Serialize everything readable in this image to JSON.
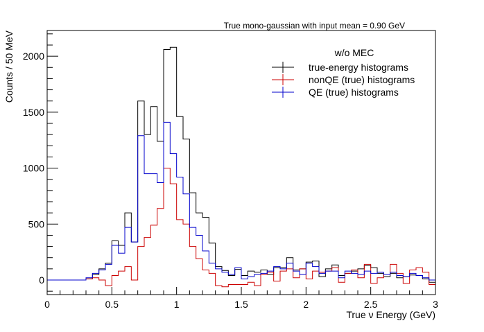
{
  "chart_data": {
    "type": "histogram",
    "title": "True mono-gaussian with input mean = 0.90 GeV",
    "xlabel": "True ν Energy (GeV)",
    "ylabel": "Counts / 50 MeV",
    "xlim": [
      0,
      3
    ],
    "ylim": [
      -130,
      2230
    ],
    "bin_width": 0.05,
    "x_ticks": [
      0,
      0.5,
      1,
      1.5,
      2,
      2.5,
      3
    ],
    "x_tick_labels": [
      "0",
      "0.5",
      "1",
      "1.5",
      "2",
      "2.5",
      "3"
    ],
    "y_ticks": [
      0,
      500,
      1000,
      1500,
      2000
    ],
    "y_tick_labels": [
      "0",
      "500",
      "1000",
      "1500",
      "2000"
    ],
    "grid": false,
    "legend": {
      "title": "w/o MEC",
      "placement": "top-right"
    },
    "bin_edges_start": 0,
    "series": [
      {
        "name": "true-energy histograms",
        "color": "#000000",
        "values": [
          0,
          0,
          0,
          0,
          0,
          0,
          10,
          50,
          100,
          150,
          350,
          310,
          600,
          340,
          1600,
          1300,
          1550,
          1240,
          2060,
          2080,
          1460,
          1260,
          780,
          600,
          560,
          330,
          120,
          85,
          40,
          95,
          40,
          80,
          70,
          90,
          50,
          110,
          110,
          200,
          90,
          100,
          160,
          170,
          30,
          100,
          135,
          40,
          60,
          80,
          100,
          130,
          110,
          60,
          30,
          60,
          20,
          30,
          45,
          40,
          10,
          -20
        ]
      },
      {
        "name": "nonQE (true) histograms",
        "color": "#cc0000",
        "values": [
          0,
          0,
          0,
          0,
          0,
          0,
          10,
          20,
          0,
          -50,
          40,
          80,
          120,
          0,
          300,
          380,
          490,
          640,
          1000,
          860,
          540,
          500,
          300,
          190,
          90,
          60,
          -50,
          -60,
          -40,
          -40,
          -40,
          -20,
          -50,
          50,
          70,
          -10,
          80,
          100,
          20,
          100,
          10,
          80,
          70,
          80,
          110,
          -20,
          60,
          90,
          20,
          140,
          -30,
          20,
          50,
          140,
          60,
          -30,
          90,
          110,
          70,
          -40
        ]
      },
      {
        "name": "QE (true) histograms",
        "color": "#0000cc",
        "values": [
          0,
          0,
          0,
          0,
          0,
          0,
          20,
          60,
          90,
          140,
          310,
          240,
          470,
          340,
          1290,
          950,
          950,
          870,
          1410,
          1130,
          920,
          770,
          470,
          400,
          260,
          150,
          100,
          70,
          50,
          110,
          10,
          30,
          50,
          60,
          80,
          120,
          100,
          150,
          80,
          50,
          150,
          120,
          60,
          80,
          80,
          20,
          80,
          60,
          50,
          80,
          60,
          70,
          50,
          70,
          40,
          30,
          60,
          40,
          20,
          0
        ]
      }
    ]
  }
}
